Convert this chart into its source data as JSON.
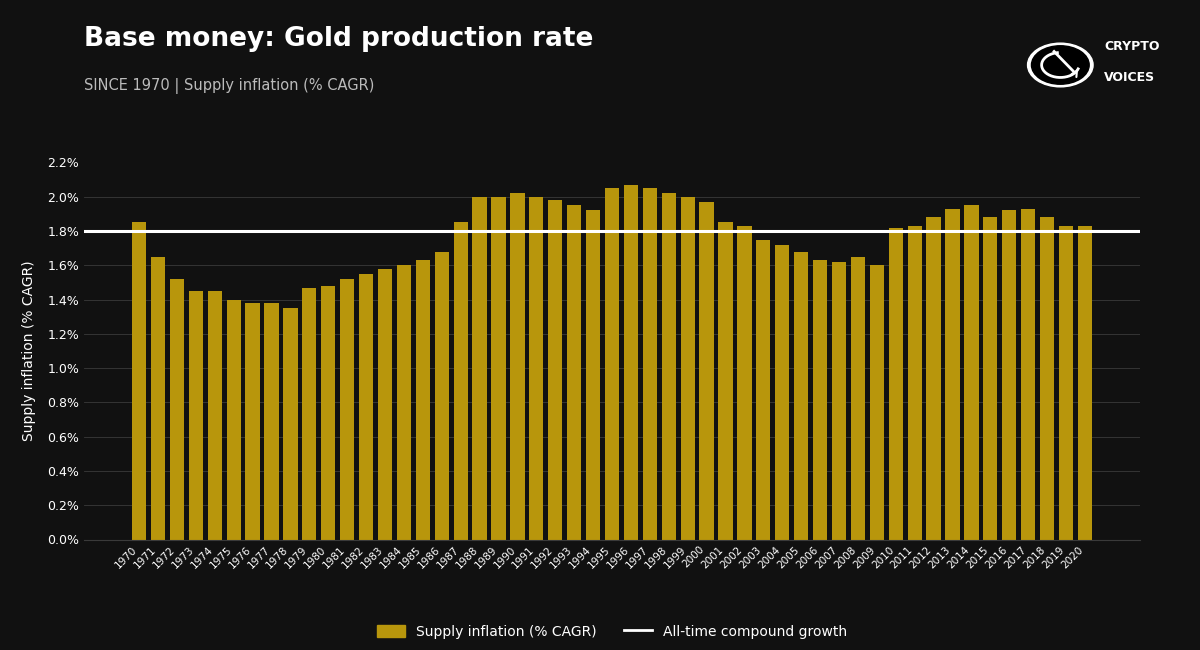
{
  "title": "Base money: Gold production rate",
  "subtitle": "SINCE 1970 | Supply inflation (% CAGR)",
  "ylabel": "Supply inflation (% CAGR)",
  "bar_color": "#B8960C",
  "line_color": "#FFFFFF",
  "background_color": "#111111",
  "text_color": "#FFFFFF",
  "grid_color": "#3a3a3a",
  "compound_growth": 0.018,
  "years": [
    1970,
    1971,
    1972,
    1973,
    1974,
    1975,
    1976,
    1977,
    1978,
    1979,
    1980,
    1981,
    1982,
    1983,
    1984,
    1985,
    1986,
    1987,
    1988,
    1989,
    1990,
    1991,
    1992,
    1993,
    1994,
    1995,
    1996,
    1997,
    1998,
    1999,
    2000,
    2001,
    2002,
    2003,
    2004,
    2005,
    2006,
    2007,
    2008,
    2009,
    2010,
    2011,
    2012,
    2013,
    2014,
    2015,
    2016,
    2017,
    2018,
    2019,
    2020
  ],
  "values": [
    0.0185,
    0.0165,
    0.0152,
    0.0145,
    0.0145,
    0.014,
    0.0138,
    0.0138,
    0.0135,
    0.0147,
    0.0148,
    0.0152,
    0.0155,
    0.0158,
    0.016,
    0.0163,
    0.0168,
    0.0185,
    0.02,
    0.02,
    0.0202,
    0.02,
    0.0198,
    0.0195,
    0.0192,
    0.0205,
    0.0207,
    0.0205,
    0.0202,
    0.02,
    0.0197,
    0.0185,
    0.0183,
    0.0175,
    0.0172,
    0.0168,
    0.0163,
    0.0162,
    0.0165,
    0.016,
    0.0182,
    0.0183,
    0.0188,
    0.0193,
    0.0195,
    0.0188,
    0.0192,
    0.0193,
    0.0188,
    0.0183,
    0.0183
  ],
  "ylim": [
    0.0,
    0.022
  ],
  "yticks": [
    0.0,
    0.002,
    0.004,
    0.006,
    0.008,
    0.01,
    0.012,
    0.014,
    0.016,
    0.018,
    0.02,
    0.022
  ],
  "legend_bar_label": "Supply inflation (% CAGR)",
  "legend_line_label": "All-time compound growth"
}
